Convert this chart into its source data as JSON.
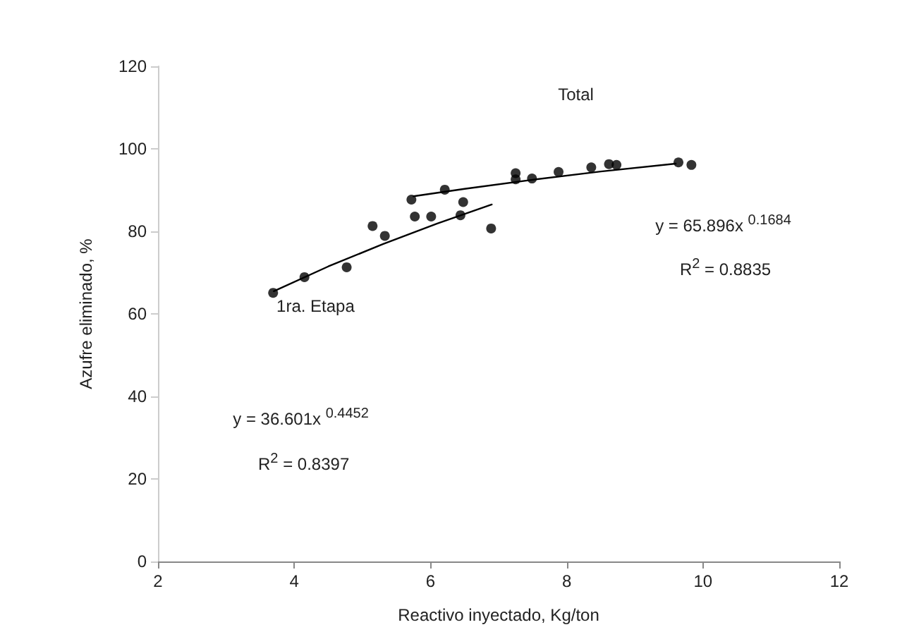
{
  "chart_data": {
    "type": "scatter",
    "xlabel": "Reactivo inyectado, Kg/ton",
    "ylabel": "Azufre eliminado, %",
    "xlim": [
      2,
      12
    ],
    "xticks": [
      2,
      4,
      6,
      8,
      10,
      12
    ],
    "ylim": [
      0,
      120
    ],
    "yticks": [
      0,
      20,
      40,
      60,
      80,
      100,
      120
    ],
    "grid": false,
    "marker": "circle",
    "line_style": "solid",
    "series": [
      {
        "color": "#000000",
        "x": [
          3.69,
          4.15,
          4.77,
          5.15,
          5.33,
          5.72,
          5.77,
          6.01,
          6.21,
          6.44,
          6.48,
          6.89,
          7.25,
          7.25,
          7.49,
          7.88,
          8.36,
          8.62,
          8.73,
          9.64,
          9.83
        ],
        "values": [
          65.1,
          68.9,
          71.3,
          81.3,
          78.9,
          87.7,
          83.6,
          83.6,
          90.1,
          83.9,
          87.1,
          80.7,
          94.1,
          92.6,
          92.8,
          94.4,
          95.5,
          96.3,
          96.1,
          96.7,
          96.1
        ]
      },
      {
        "type": "line",
        "color": "#000000",
        "marker": "none",
        "x": [
          3.7,
          4.5,
          5.3,
          6.1,
          6.9
        ],
        "values": [
          65.5,
          71.5,
          76.9,
          81.9,
          86.5
        ]
      },
      {
        "type": "line",
        "color": "#000000",
        "marker": "none",
        "x": [
          5.75,
          6.5,
          7.5,
          8.5,
          9.6
        ],
        "values": [
          88.5,
          90.3,
          92.5,
          94.5,
          96.4
        ]
      }
    ],
    "annotations": [
      "Total",
      "1ra. Etapa",
      "y = 65.896x $^{0.1684}$",
      "R$^{2}$ = 0.8835",
      "y = 36.601x $^{0.4452}$",
      "R$^{2}$ = 0.8397"
    ]
  }
}
